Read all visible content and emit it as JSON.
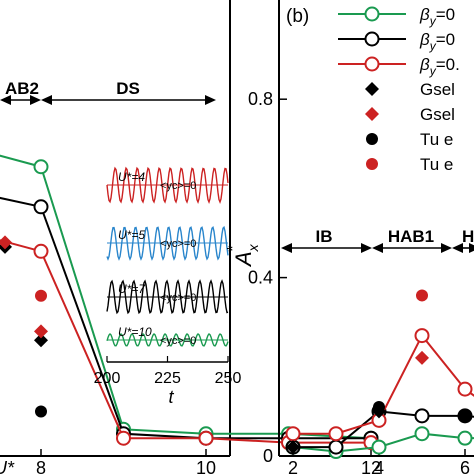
{
  "panel_b_label": "(b)",
  "chart_data": [
    {
      "type": "line",
      "panel": "a (partially cropped)",
      "x_ticks": [
        "8",
        "10",
        "12"
      ],
      "x_axis_label_fragment": "U*",
      "regions": [
        {
          "label": "AB2"
        },
        {
          "label": "DS"
        }
      ],
      "x": [
        7,
        8,
        9,
        10,
        11,
        12
      ],
      "series": [
        {
          "color": "#1a9a50",
          "marker": "open-circle",
          "values": [
            0.7,
            0.65,
            0.06,
            0.05,
            0.05,
            0.04
          ]
        },
        {
          "color": "#000000",
          "marker": "open-circle",
          "values": [
            0.6,
            0.56,
            0.05,
            0.04,
            0.04,
            0.04
          ]
        },
        {
          "color": "#cc2222",
          "marker": "open-circle",
          "values": [
            0.51,
            0.46,
            0.04,
            0.04,
            0.03,
            0.03
          ]
        }
      ],
      "scatter": [
        {
          "color": "#000000",
          "marker": "filled-diamond",
          "points": [
            [
              7,
              0.47
            ],
            [
              8,
              0.26
            ]
          ]
        },
        {
          "color": "#cc2222",
          "marker": "filled-diamond",
          "points": [
            [
              7,
              0.48
            ],
            [
              8,
              0.28
            ]
          ]
        },
        {
          "color": "#000000",
          "marker": "filled-circle",
          "points": [
            [
              8,
              0.1
            ]
          ]
        },
        {
          "color": "#cc2222",
          "marker": "filled-circle",
          "points": [
            [
              8,
              0.36
            ]
          ]
        }
      ],
      "inset": {
        "type": "line",
        "x_ticks": [
          "200",
          "225",
          "250"
        ],
        "xlabel": "t",
        "xlim": [
          200,
          250
        ],
        "traces": [
          {
            "color": "#cc2222",
            "label": "U*=4",
            "mean_label": "<yc>=0"
          },
          {
            "color": "#2a86cc",
            "label": "U*=5",
            "mean_label": "<yc>=0"
          },
          {
            "color": "#000000",
            "label": "U*=7",
            "mean_label": "<yc>=0"
          },
          {
            "color": "#1a9a50",
            "label": "U*=10",
            "mean_label": "<yc>=0"
          }
        ]
      }
    },
    {
      "type": "line",
      "panel": "b",
      "ylabel": "A*x",
      "ylim": [
        0,
        1.0
      ],
      "y_ticks": [
        "0",
        "0.4",
        "0.8"
      ],
      "x_ticks": [
        "2",
        "4",
        "6"
      ],
      "regions": [
        {
          "label": "IB"
        },
        {
          "label": "HAB1"
        },
        {
          "label": "H"
        }
      ],
      "x": [
        2,
        3,
        4,
        5,
        6,
        7
      ],
      "series": [
        {
          "name": "βy=0…",
          "color": "#1a9a50",
          "marker": "open-circle",
          "values": [
            0.02,
            0.01,
            0.02,
            0.05,
            0.04,
            0.04
          ]
        },
        {
          "name": "βy=0…",
          "color": "#000000",
          "marker": "open-circle",
          "values": [
            0.02,
            0.02,
            0.1,
            0.09,
            0.09,
            0.08
          ]
        },
        {
          "name": "βy=0.…",
          "color": "#cc2222",
          "marker": "open-circle",
          "values": [
            0.05,
            0.05,
            0.08,
            0.27,
            0.15,
            0.08
          ]
        }
      ],
      "scatter": [
        {
          "name": "Gsel…",
          "color": "#000000",
          "marker": "filled-diamond",
          "points": [
            [
              2,
              0.02
            ],
            [
              4,
              0.1
            ],
            [
              6,
              0.09
            ]
          ]
        },
        {
          "name": "Gsel…",
          "color": "#cc2222",
          "marker": "filled-diamond",
          "points": [
            [
              5,
              0.22
            ]
          ]
        },
        {
          "name": "Tu e…",
          "color": "#000000",
          "marker": "filled-circle",
          "points": [
            [
              4,
              0.11
            ],
            [
              6,
              0.09
            ]
          ]
        },
        {
          "name": "Tu e…",
          "color": "#cc2222",
          "marker": "filled-circle",
          "points": [
            [
              5,
              0.36
            ]
          ]
        }
      ]
    }
  ],
  "legend": [
    {
      "label_tex": "βy=0",
      "text": "β",
      "sub": "y",
      "tail": "=0",
      "kind": "line-open-circle",
      "color": "#1a9a50"
    },
    {
      "label_tex": "βy=0",
      "text": "β",
      "sub": "y",
      "tail": "=0",
      "kind": "line-open-circle",
      "color": "#000000"
    },
    {
      "label_tex": "βy=0.",
      "text": "β",
      "sub": "y",
      "tail": "=0.",
      "kind": "line-open-circle",
      "color": "#cc2222"
    },
    {
      "text": "Gsel",
      "sub": "",
      "tail": "",
      "kind": "filled-diamond",
      "color": "#000000"
    },
    {
      "text": "Gsel",
      "sub": "",
      "tail": "",
      "kind": "filled-diamond",
      "color": "#cc2222"
    },
    {
      "text": "Tu e",
      "sub": "",
      "tail": "",
      "kind": "filled-circle",
      "color": "#000000"
    },
    {
      "text": "Tu e",
      "sub": "",
      "tail": "",
      "kind": "filled-circle",
      "color": "#cc2222"
    }
  ]
}
